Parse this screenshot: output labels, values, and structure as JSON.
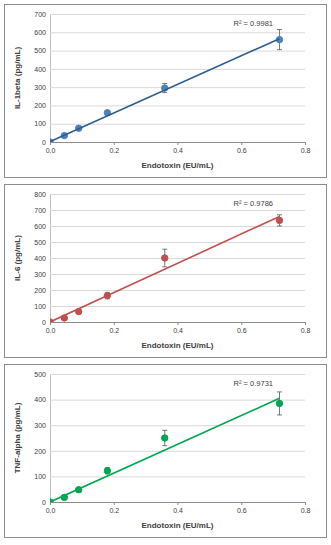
{
  "chart_data": [
    {
      "type": "scatter",
      "x_label": "Endotoxin (EU/mL)",
      "y_label": "IL-1beta (pg/mL)",
      "annotation": "R² = 0.9981",
      "x": [
        0,
        0.045,
        0.09,
        0.18,
        0.36,
        0.72
      ],
      "series": [
        {
          "type": "scatter",
          "color": "#4f81bd",
          "marker": "circle",
          "values": [
            0,
            35,
            75,
            160,
            295,
            560
          ],
          "errors": [
            0,
            5,
            8,
            12,
            25,
            55
          ]
        },
        {
          "type": "line",
          "color": "#2c5d8f",
          "line_style": "solid",
          "x": [
            0,
            0.72
          ],
          "values": [
            2,
            565
          ]
        }
      ],
      "xlim": [
        0,
        0.8
      ],
      "xticks": [
        {
          "value": 0,
          "label": "0.0"
        },
        {
          "value": 0.2,
          "label": "0.2"
        },
        {
          "value": 0.4,
          "label": "0.4"
        },
        {
          "value": 0.6,
          "label": "0.6"
        },
        {
          "value": 0.8,
          "label": "0.8"
        }
      ],
      "ylim": [
        0,
        700
      ],
      "yticks": [
        0,
        100,
        200,
        300,
        400,
        500,
        600,
        700
      ],
      "grid": true
    },
    {
      "type": "scatter",
      "x_label": "Endotoxin (EU/mL)",
      "y_label": "IL-6 (pg/mL)",
      "annotation": "R² = 0.9786",
      "x": [
        0,
        0.045,
        0.09,
        0.18,
        0.36,
        0.72
      ],
      "series": [
        {
          "type": "scatter",
          "color": "#c0504d",
          "marker": "circle",
          "values": [
            0,
            25,
            65,
            165,
            400,
            635
          ],
          "errors": [
            0,
            5,
            8,
            20,
            55,
            35
          ]
        },
        {
          "type": "line",
          "color": "#c0504d",
          "line_style": "solid",
          "x": [
            0,
            0.72
          ],
          "values": [
            0,
            660
          ]
        }
      ],
      "xlim": [
        0,
        0.8
      ],
      "xticks": [
        {
          "value": 0,
          "label": "0.0"
        },
        {
          "value": 0.2,
          "label": "0.2"
        },
        {
          "value": 0.4,
          "label": "0.4"
        },
        {
          "value": 0.6,
          "label": "0.6"
        },
        {
          "value": 0.8,
          "label": "0.8"
        }
      ],
      "ylim": [
        0,
        800
      ],
      "yticks": [
        0,
        100,
        200,
        300,
        400,
        500,
        600,
        700,
        800
      ],
      "grid": true
    },
    {
      "type": "scatter",
      "x_label": "Endotoxin (EU/mL)",
      "y_label": "TNF-alpha (pg/mL)",
      "annotation": "R² = 0.9731",
      "x": [
        0,
        0.045,
        0.09,
        0.18,
        0.36,
        0.72
      ],
      "series": [
        {
          "type": "scatter",
          "color": "#00a651",
          "marker": "circle",
          "values": [
            0,
            18,
            48,
            122,
            250,
            385
          ],
          "errors": [
            0,
            5,
            8,
            12,
            30,
            45
          ]
        },
        {
          "type": "line",
          "color": "#00a651",
          "line_style": "solid",
          "x": [
            0,
            0.72
          ],
          "values": [
            0,
            405
          ]
        }
      ],
      "xlim": [
        0,
        0.8
      ],
      "xticks": [
        {
          "value": 0,
          "label": "0.0"
        },
        {
          "value": 0.2,
          "label": "0.2"
        },
        {
          "value": 0.4,
          "label": "0.4"
        },
        {
          "value": 0.6,
          "label": "0.6"
        },
        {
          "value": 0.8,
          "label": "0.8"
        }
      ],
      "ylim": [
        0,
        500
      ],
      "yticks": [
        0,
        100,
        200,
        300,
        400,
        500
      ],
      "grid": true
    }
  ]
}
